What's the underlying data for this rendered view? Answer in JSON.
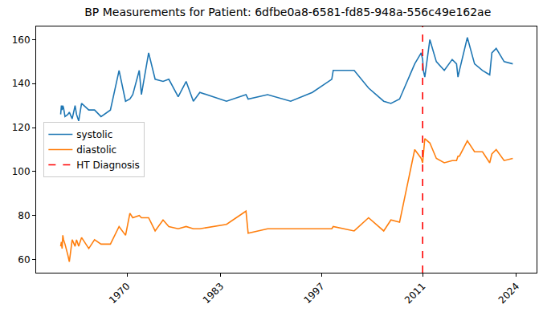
{
  "chart_data": {
    "type": "line",
    "title": "BP Measurements for Patient: 6dfbe0a8-6581-fd85-948a-556c49e162ae",
    "x": [
      1960.8,
      1960.9,
      1961.0,
      1961.1,
      1961.2,
      1961.4,
      1961.8,
      1962.0,
      1962.4,
      1962.8,
      1963.0,
      1963.3,
      1963.7,
      1964.7,
      1965.5,
      1966.4,
      1967.7,
      1968.9,
      1969.8,
      1970.4,
      1970.8,
      1971.7,
      1972.0,
      1973.0,
      1973.9,
      1975.0,
      1975.8,
      1977.1,
      1978.2,
      1979.2,
      1980.1,
      1983.8,
      1986.5,
      1986.8,
      1989.5,
      1992.7,
      1995.7,
      1998.4,
      1998.6,
      2001.5,
      2003.5,
      2005.6,
      2006.6,
      2007.8,
      2009.9,
      2010.8,
      2011.0,
      2011.1,
      2011.3,
      2012.0,
      2012.9,
      2014.0,
      2015.1,
      2015.7,
      2015.9,
      2016.1,
      2017.2,
      2018.2,
      2019.3,
      2020.3,
      2020.6,
      2021.2,
      2022.3,
      2023.5
    ],
    "series": [
      {
        "name": "systolic",
        "color": "#1f77b4",
        "values": [
          126,
          130,
          128,
          130,
          129,
          125,
          126,
          127,
          124,
          130,
          126,
          123,
          131,
          128,
          128,
          125,
          128,
          146,
          132,
          133,
          135,
          146,
          135,
          154,
          142,
          141,
          142,
          134,
          141,
          132,
          136,
          132,
          135,
          133,
          135,
          132,
          136,
          142,
          146,
          146,
          138,
          132,
          131,
          133,
          149,
          154,
          151,
          146,
          143,
          160,
          150,
          146,
          151,
          149,
          143,
          146,
          161,
          149,
          146,
          144,
          154,
          156,
          150,
          149
        ]
      },
      {
        "name": "diastolic",
        "color": "#ff7f0e",
        "values": [
          66,
          68,
          65,
          71,
          69,
          67,
          62,
          59,
          69,
          66,
          69,
          66,
          70,
          65,
          69,
          67,
          67,
          75,
          71,
          81,
          79,
          80,
          79,
          79,
          73,
          78,
          75,
          74,
          75,
          74,
          74,
          76,
          82,
          72,
          74,
          74,
          74,
          74,
          75,
          73,
          79,
          73,
          78,
          77,
          110,
          106,
          104,
          108,
          115,
          113,
          106,
          104,
          105,
          105,
          107,
          107,
          114,
          109,
          109,
          104,
          108,
          110,
          105,
          106
        ]
      }
    ],
    "reference_lines": [
      {
        "name": "HT Diagnosis",
        "x": 2011.0,
        "color": "#ff0000",
        "line_style": "dashed"
      }
    ],
    "xlim": [
      1957.4,
      2026.8
    ],
    "xticks": [
      1970,
      1983,
      1997,
      2011,
      2024
    ],
    "ylim": [
      54,
      166
    ],
    "yticks": [
      60,
      80,
      100,
      120,
      140,
      160
    ],
    "grid": false,
    "legend": "center left"
  }
}
